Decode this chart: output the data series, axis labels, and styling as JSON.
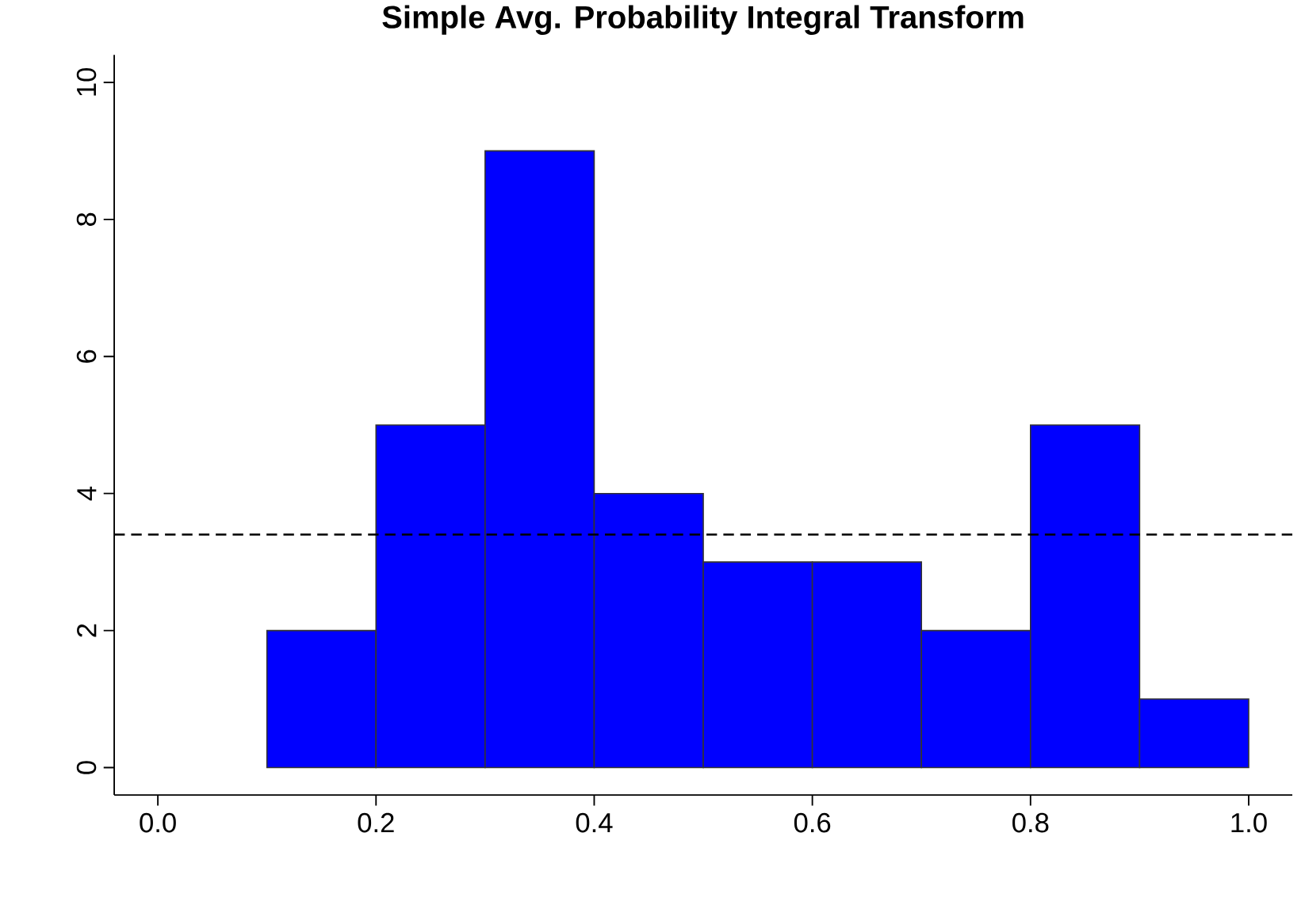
{
  "chart_data": {
    "type": "histogram",
    "title": "Simple Avg. Probability Integral Transform",
    "bins": [
      0.1,
      0.2,
      0.3,
      0.4,
      0.5,
      0.6,
      0.7,
      0.8,
      0.9,
      1.0
    ],
    "values": [
      2,
      5,
      9,
      4,
      3,
      3,
      2,
      5,
      1
    ],
    "color": "#0000ff",
    "xlim": [
      -0.04,
      1.04
    ],
    "ylim": [
      -0.4,
      10.4
    ],
    "xticks": [
      {
        "value": 0,
        "label": "0.0"
      },
      0.2,
      0.4,
      0.6,
      0.8,
      {
        "value": 1,
        "label": "1.0"
      }
    ],
    "yticks": [
      0,
      2,
      4,
      6,
      8,
      10
    ],
    "ref_lines": [
      {
        "axis": "y",
        "value": 3.4,
        "color": "#000000",
        "line_style": "dashed"
      }
    ],
    "grid": false
  }
}
